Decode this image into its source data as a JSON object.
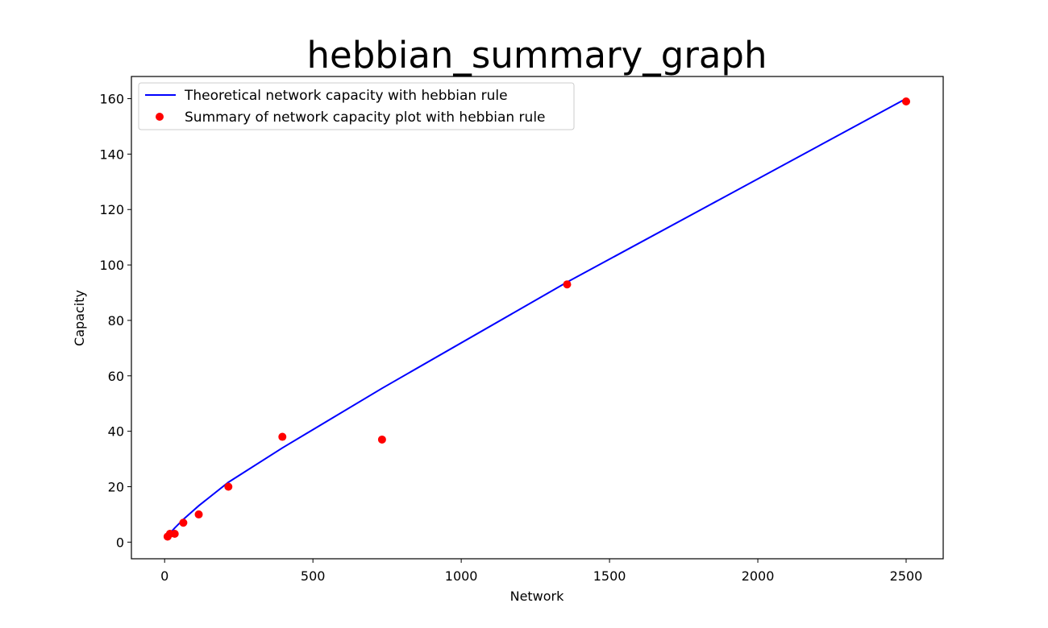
{
  "chart_data": {
    "type": "line",
    "title": "hebbian_summary_graph",
    "xlabel": "Network",
    "ylabel": "Capacity",
    "xlim": [
      -112,
      2625
    ],
    "ylim": [
      -6,
      168
    ],
    "xticks": [
      0,
      500,
      1000,
      1500,
      2000,
      2500
    ],
    "yticks": [
      0,
      20,
      40,
      60,
      80,
      100,
      120,
      140,
      160
    ],
    "grid": false,
    "legend_position": "upper-left",
    "series": [
      {
        "name": "Theoretical network capacity with hebbian rule",
        "style": "line",
        "color": "#0000ff",
        "x": [
          10,
          18,
          34,
          63,
          115,
          215,
          397,
          733,
          1357,
          2500
        ],
        "y": [
          2.2,
          3.2,
          5.1,
          8.2,
          13.1,
          21.6,
          34.0,
          55.5,
          93.8,
          160.0
        ]
      },
      {
        "name": "Summary of network capacity plot with hebbian rule",
        "style": "points",
        "color": "#ff0000",
        "x": [
          10,
          18,
          34,
          63,
          115,
          215,
          397,
          733,
          1357,
          2500
        ],
        "y": [
          2,
          3,
          3,
          7,
          10,
          20,
          38,
          37,
          93,
          159
        ]
      }
    ]
  }
}
